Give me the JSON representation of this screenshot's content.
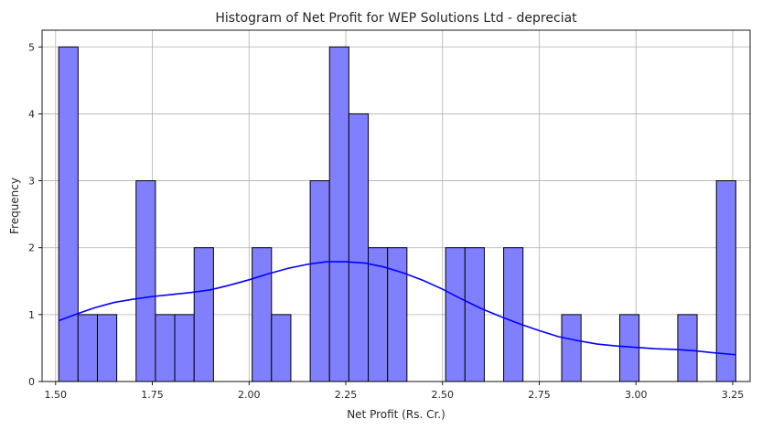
{
  "chart_data": {
    "type": "bar",
    "subtype": "histogram",
    "title": "Histogram of Net Profit for WEP Solutions Ltd - depreciat",
    "xlabel": "Net Profit (Rs. Cr.)",
    "ylabel": "Frequency",
    "xlim": [
      1.465,
      3.295
    ],
    "ylim": [
      0,
      5.25
    ],
    "xticks": [
      1.5,
      1.75,
      2.0,
      2.25,
      2.5,
      2.75,
      3.0,
      3.25
    ],
    "xtick_labels": [
      "1.50",
      "1.75",
      "2.00",
      "2.25",
      "2.50",
      "2.75",
      "3.00",
      "3.25"
    ],
    "yticks": [
      0,
      1,
      2,
      3,
      4,
      5
    ],
    "ytick_labels": [
      "0",
      "1",
      "2",
      "3",
      "4",
      "5"
    ],
    "grid": true,
    "bar_color": "#8080ff",
    "bar_edge_color": "#000000",
    "kde_color": "#0000ff",
    "bins": [
      {
        "start": 1.508,
        "end": 1.558,
        "count": 5
      },
      {
        "start": 1.558,
        "end": 1.608,
        "count": 1
      },
      {
        "start": 1.608,
        "end": 1.658,
        "count": 1
      },
      {
        "start": 1.658,
        "end": 1.708,
        "count": 0
      },
      {
        "start": 1.708,
        "end": 1.758,
        "count": 3
      },
      {
        "start": 1.758,
        "end": 1.808,
        "count": 1
      },
      {
        "start": 1.808,
        "end": 1.858,
        "count": 1
      },
      {
        "start": 1.858,
        "end": 1.908,
        "count": 2
      },
      {
        "start": 1.908,
        "end": 1.958,
        "count": 0
      },
      {
        "start": 1.958,
        "end": 2.008,
        "count": 0
      },
      {
        "start": 2.008,
        "end": 2.058,
        "count": 2
      },
      {
        "start": 2.058,
        "end": 2.108,
        "count": 1
      },
      {
        "start": 2.108,
        "end": 2.158,
        "count": 0
      },
      {
        "start": 2.158,
        "end": 2.208,
        "count": 3
      },
      {
        "start": 2.208,
        "end": 2.258,
        "count": 5
      },
      {
        "start": 2.258,
        "end": 2.308,
        "count": 4
      },
      {
        "start": 2.308,
        "end": 2.358,
        "count": 2
      },
      {
        "start": 2.358,
        "end": 2.408,
        "count": 2
      },
      {
        "start": 2.408,
        "end": 2.458,
        "count": 0
      },
      {
        "start": 2.458,
        "end": 2.508,
        "count": 0
      },
      {
        "start": 2.508,
        "end": 2.558,
        "count": 2
      },
      {
        "start": 2.558,
        "end": 2.608,
        "count": 2
      },
      {
        "start": 2.608,
        "end": 2.658,
        "count": 0
      },
      {
        "start": 2.658,
        "end": 2.708,
        "count": 2
      },
      {
        "start": 2.708,
        "end": 2.758,
        "count": 0
      },
      {
        "start": 2.758,
        "end": 2.808,
        "count": 0
      },
      {
        "start": 2.808,
        "end": 2.858,
        "count": 1
      },
      {
        "start": 2.858,
        "end": 2.908,
        "count": 0
      },
      {
        "start": 2.908,
        "end": 2.958,
        "count": 0
      },
      {
        "start": 2.958,
        "end": 3.008,
        "count": 1
      },
      {
        "start": 3.008,
        "end": 3.058,
        "count": 0
      },
      {
        "start": 3.058,
        "end": 3.108,
        "count": 0
      },
      {
        "start": 3.108,
        "end": 3.158,
        "count": 1
      },
      {
        "start": 3.158,
        "end": 3.208,
        "count": 0
      },
      {
        "start": 3.208,
        "end": 3.258,
        "count": 3
      }
    ],
    "kde": {
      "x": [
        1.508,
        1.55,
        1.6,
        1.65,
        1.7,
        1.75,
        1.8,
        1.85,
        1.9,
        1.95,
        2.0,
        2.05,
        2.1,
        2.15,
        2.2,
        2.25,
        2.3,
        2.35,
        2.4,
        2.45,
        2.5,
        2.55,
        2.6,
        2.65,
        2.7,
        2.75,
        2.8,
        2.85,
        2.9,
        2.95,
        3.0,
        3.05,
        3.1,
        3.15,
        3.2,
        3.258
      ],
      "y": [
        0.91,
        1.0,
        1.1,
        1.18,
        1.23,
        1.27,
        1.3,
        1.33,
        1.37,
        1.44,
        1.52,
        1.61,
        1.69,
        1.75,
        1.79,
        1.79,
        1.77,
        1.71,
        1.62,
        1.51,
        1.38,
        1.23,
        1.09,
        0.97,
        0.86,
        0.76,
        0.67,
        0.61,
        0.56,
        0.53,
        0.51,
        0.49,
        0.48,
        0.46,
        0.43,
        0.4
      ]
    }
  }
}
